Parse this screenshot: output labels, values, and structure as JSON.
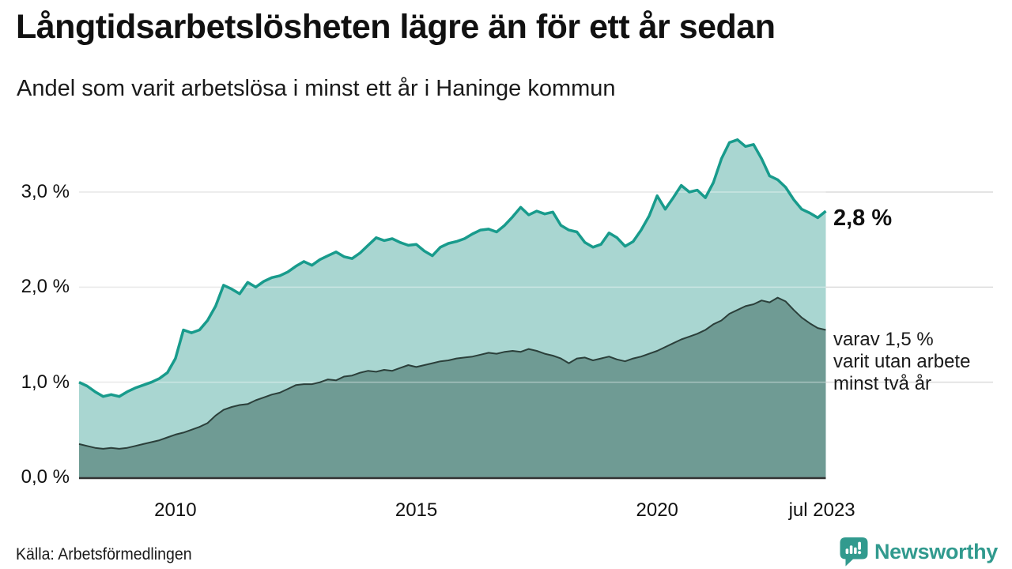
{
  "header": {
    "title": "Långtidsarbetslösheten lägre än för ett år sedan",
    "subtitle": "Andel som varit arbetslösa i minst ett år i Haninge kommun"
  },
  "annotations": {
    "latest_value": "2,8 %",
    "secondary": "varav 1,5 %\nvarit utan arbete\nminst två år"
  },
  "footer": {
    "source": "Källa: Arbetsförmedlingen",
    "brand": "Newsworthy"
  },
  "colors": {
    "accent_teal": "#189b8c",
    "light_fill": "#a9d6d1",
    "dark_fill": "#6f9b94",
    "dark_line": "#2b3f3a",
    "axis": "#333333",
    "gridline": "#dcdcdc",
    "grid_overlay": "rgba(255,255,255,0.4)",
    "brand_teal": "#319a8e",
    "text": "#111111"
  },
  "chart_data": {
    "type": "area",
    "title": "Långtidsarbetslösheten lägre än för ett år sedan",
    "subtitle": "Andel som varit arbetslösa i minst ett år i Haninge kommun",
    "unit": "%",
    "grid": true,
    "legend_position": "right-annotations",
    "xlim": [
      2008.0,
      2023.5
    ],
    "ylim": [
      0,
      3.7
    ],
    "x_start": 2008.0,
    "x_step_years": 0.166667,
    "x_end": 2023.5,
    "x_ticks": [
      {
        "year": 2010.0,
        "label": "2010"
      },
      {
        "year": 2015.0,
        "label": "2015"
      },
      {
        "year": 2020.0,
        "label": "2020"
      },
      {
        "year": 2023.42,
        "label": "jul 2023"
      }
    ],
    "y_ticks": [
      {
        "value": 3.0,
        "label": "3,0 %"
      },
      {
        "value": 2.0,
        "label": "2,0 %"
      },
      {
        "value": 1.0,
        "label": "1,0 %"
      },
      {
        "value": 0.0,
        "label": "0,0 %"
      }
    ],
    "series": [
      {
        "name": "Andel som varit arbetslösa i minst ett år",
        "end_label": "2,8 %",
        "line_color": "#189b8c",
        "fill_color": "#a9d6d1",
        "line_width": 3.5,
        "values": [
          1.0,
          0.96,
          0.9,
          0.85,
          0.87,
          0.85,
          0.9,
          0.94,
          0.97,
          1.0,
          1.04,
          1.1,
          1.25,
          1.55,
          1.52,
          1.55,
          1.65,
          1.8,
          2.02,
          1.98,
          1.93,
          2.05,
          2.0,
          2.06,
          2.1,
          2.12,
          2.16,
          2.22,
          2.27,
          2.23,
          2.29,
          2.33,
          2.37,
          2.32,
          2.3,
          2.36,
          2.44,
          2.52,
          2.49,
          2.51,
          2.47,
          2.44,
          2.45,
          2.38,
          2.33,
          2.42,
          2.46,
          2.48,
          2.51,
          2.56,
          2.6,
          2.61,
          2.58,
          2.65,
          2.74,
          2.84,
          2.76,
          2.8,
          2.77,
          2.79,
          2.65,
          2.6,
          2.58,
          2.47,
          2.42,
          2.45,
          2.57,
          2.52,
          2.43,
          2.48,
          2.6,
          2.75,
          2.96,
          2.82,
          2.94,
          3.07,
          3.0,
          3.02,
          2.94,
          3.1,
          3.35,
          3.52,
          3.55,
          3.48,
          3.5,
          3.35,
          3.17,
          3.13,
          3.05,
          2.92,
          2.82,
          2.78,
          2.73,
          2.8
        ]
      },
      {
        "name": "varav utan arbete minst två år",
        "end_label": "1,5 %",
        "line_color": "#2b3f3a",
        "fill_color": "#6f9b94",
        "line_width": 2,
        "values": [
          0.35,
          0.33,
          0.31,
          0.3,
          0.31,
          0.3,
          0.31,
          0.33,
          0.35,
          0.37,
          0.39,
          0.42,
          0.45,
          0.47,
          0.5,
          0.53,
          0.57,
          0.65,
          0.71,
          0.74,
          0.76,
          0.77,
          0.81,
          0.84,
          0.87,
          0.89,
          0.93,
          0.97,
          0.98,
          0.98,
          1.0,
          1.03,
          1.02,
          1.06,
          1.07,
          1.1,
          1.12,
          1.11,
          1.13,
          1.12,
          1.15,
          1.18,
          1.16,
          1.18,
          1.2,
          1.22,
          1.23,
          1.25,
          1.26,
          1.27,
          1.29,
          1.31,
          1.3,
          1.32,
          1.33,
          1.32,
          1.35,
          1.33,
          1.3,
          1.28,
          1.25,
          1.2,
          1.25,
          1.26,
          1.23,
          1.25,
          1.27,
          1.24,
          1.22,
          1.25,
          1.27,
          1.3,
          1.33,
          1.37,
          1.41,
          1.45,
          1.48,
          1.51,
          1.55,
          1.61,
          1.65,
          1.72,
          1.76,
          1.8,
          1.82,
          1.86,
          1.84,
          1.89,
          1.85,
          1.76,
          1.68,
          1.62,
          1.57,
          1.55
        ]
      }
    ]
  }
}
